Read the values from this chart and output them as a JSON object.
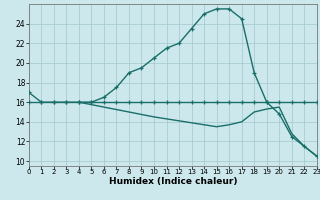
{
  "xlabel": "Humidex (Indice chaleur)",
  "bg_color": "#cce8ec",
  "grid_color": "#a0c8cc",
  "line_color": "#1a6e6a",
  "xlim": [
    0,
    23
  ],
  "ylim": [
    9.5,
    26.0
  ],
  "x_ticks": [
    0,
    1,
    2,
    3,
    4,
    5,
    6,
    7,
    8,
    9,
    10,
    11,
    12,
    13,
    14,
    15,
    16,
    17,
    18,
    19,
    20,
    21,
    22,
    23
  ],
  "y_ticks": [
    10,
    12,
    14,
    16,
    18,
    20,
    22,
    24
  ],
  "line1_x": [
    0,
    1,
    2,
    3,
    4,
    5,
    6,
    7,
    8,
    9,
    10,
    11,
    12,
    13,
    14,
    15,
    16,
    17,
    18,
    19,
    20,
    21,
    22,
    23
  ],
  "line1_y": [
    17.0,
    16.0,
    16.0,
    16.0,
    16.0,
    16.0,
    16.5,
    17.5,
    19.0,
    19.5,
    20.5,
    21.5,
    22.0,
    23.5,
    25.0,
    25.5,
    25.5,
    24.5,
    19.0,
    16.0,
    14.8,
    12.5,
    11.5,
    10.5
  ],
  "line2_x": [
    0,
    1,
    2,
    3,
    4,
    5,
    6,
    7,
    8,
    9,
    10,
    11,
    12,
    13,
    14,
    15,
    16,
    17,
    18,
    19,
    20,
    21,
    22,
    23
  ],
  "line2_y": [
    16.0,
    16.0,
    16.0,
    16.0,
    16.0,
    16.0,
    16.0,
    16.0,
    16.0,
    16.0,
    16.0,
    16.0,
    16.0,
    16.0,
    16.0,
    16.0,
    16.0,
    16.0,
    16.0,
    16.0,
    16.0,
    16.0,
    16.0,
    16.0
  ],
  "line3_x": [
    4,
    5,
    6,
    7,
    8,
    9,
    10,
    11,
    12,
    13,
    14,
    15,
    16,
    17,
    18,
    19,
    20,
    21,
    22,
    23
  ],
  "line3_y": [
    16.0,
    15.75,
    15.5,
    15.25,
    15.0,
    14.75,
    14.5,
    14.3,
    14.1,
    13.9,
    13.7,
    13.5,
    13.7,
    14.0,
    15.0,
    15.3,
    15.5,
    12.8,
    11.5,
    10.5
  ]
}
